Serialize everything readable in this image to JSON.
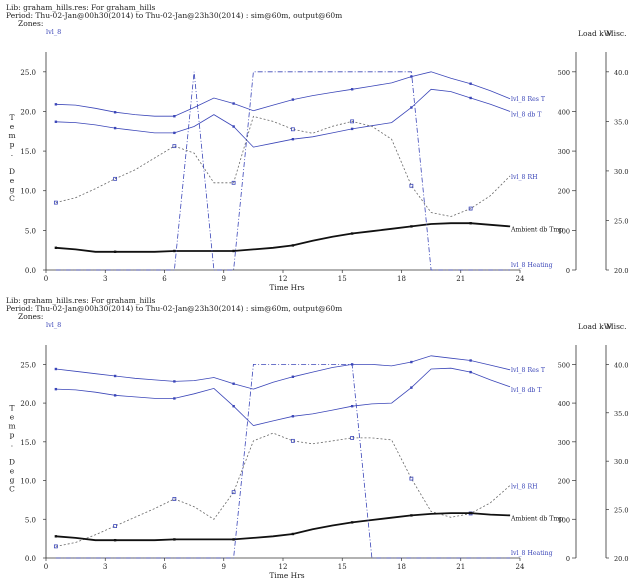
{
  "chart_data": [
    {
      "type": "line",
      "header": {
        "lib_line": "Lib: graham_hills.res: For graham_hills",
        "period_line": "Period: Thu-02-Jan@00h30(2014) to Thu-02-Jan@23h30(2014) : sim@60m, output@60m",
        "zones_label": "Zones:",
        "zone_name": "lvl_8"
      },
      "xlabel": "Time Hrs",
      "ylabel": "Temp. DegC",
      "right_axis_title": "Load kW",
      "right2_axis_title": "Misc.",
      "xlim": [
        0,
        24
      ],
      "xticks": [
        0,
        3,
        6,
        9,
        12,
        15,
        18,
        21,
        24
      ],
      "ylim": [
        0,
        27.5
      ],
      "yticks": [
        0.0,
        5.0,
        10.0,
        15.0,
        20.0,
        25.0
      ],
      "y2lim": [
        0,
        550
      ],
      "y2ticks": [
        0,
        100,
        200,
        300,
        400,
        500
      ],
      "y3lim": [
        20.0,
        42.0
      ],
      "y3ticks": [
        20.0,
        25.0,
        30.0,
        35.0,
        40.0
      ],
      "x": [
        0.5,
        1.5,
        2.5,
        3.5,
        4.5,
        5.5,
        6.5,
        7.5,
        8.5,
        9.5,
        10.5,
        11.5,
        12.5,
        13.5,
        14.5,
        15.5,
        16.5,
        17.5,
        18.5,
        19.5,
        20.5,
        21.5,
        22.5,
        23.5
      ],
      "series": [
        {
          "name": "lvl_8 Res T",
          "axis": "temp",
          "color": "#3b46b8",
          "values": [
            20.9,
            20.8,
            20.4,
            19.9,
            19.6,
            19.4,
            19.4,
            20.5,
            21.7,
            21.0,
            20.1,
            20.8,
            21.5,
            22.0,
            22.4,
            22.8,
            23.2,
            23.6,
            24.4,
            25.0,
            24.2,
            23.5,
            22.6,
            21.6
          ]
        },
        {
          "name": "lvl_8 db T",
          "axis": "temp",
          "color": "#3b46b8",
          "values": [
            18.7,
            18.6,
            18.3,
            17.9,
            17.6,
            17.3,
            17.3,
            18.1,
            19.6,
            18.1,
            15.5,
            16.0,
            16.5,
            16.8,
            17.3,
            17.8,
            18.2,
            18.6,
            20.5,
            22.8,
            22.5,
            21.7,
            20.9,
            20.0
          ]
        },
        {
          "name": "lvl_8 RH",
          "axis": "misc",
          "color": "#666666",
          "dashed": true,
          "markers": true,
          "values": [
            26.8,
            27.3,
            28.2,
            29.2,
            30.1,
            31.3,
            32.5,
            31.8,
            28.8,
            28.8,
            35.5,
            35.0,
            34.2,
            33.8,
            34.5,
            35.0,
            34.5,
            33.2,
            28.5,
            25.8,
            25.4,
            26.2,
            27.5,
            29.5
          ]
        },
        {
          "name": "Ambient db Tmp",
          "axis": "temp",
          "color": "#111111",
          "bold": true,
          "values": [
            2.8,
            2.6,
            2.3,
            2.3,
            2.3,
            2.3,
            2.4,
            2.4,
            2.4,
            2.4,
            2.6,
            2.8,
            3.1,
            3.7,
            4.2,
            4.6,
            4.9,
            5.2,
            5.5,
            5.8,
            5.9,
            5.9,
            5.7,
            5.5
          ]
        },
        {
          "name": "lvl_8 Heating",
          "axis": "load",
          "color": "#3b46b8",
          "dash_dot": true,
          "values": [
            0,
            0,
            0,
            0,
            0,
            0,
            0,
            500,
            0,
            0,
            500,
            500,
            500,
            500,
            500,
            500,
            500,
            500,
            500,
            0,
            0,
            0,
            0,
            0
          ]
        }
      ]
    },
    {
      "type": "line",
      "header": {
        "lib_line": "Lib: graham_hills.res: For graham_hills",
        "period_line": "Period: Thu-02-Jan@00h30(2014) to Thu-02-Jan@23h30(2014) : sim@60m, output@60m",
        "zones_label": "Zones:",
        "zone_name": "lvl_8"
      },
      "xlabel": "Time Hrs",
      "ylabel": "Temp. DegC",
      "right_axis_title": "Load kW",
      "right2_axis_title": "Misc.",
      "xlim": [
        0,
        24
      ],
      "xticks": [
        0,
        3,
        6,
        9,
        12,
        15,
        18,
        21,
        24
      ],
      "ylim": [
        0,
        27.5
      ],
      "yticks": [
        0.0,
        5.0,
        10.0,
        15.0,
        20.0,
        25.0
      ],
      "y2lim": [
        0,
        550
      ],
      "y2ticks": [
        0,
        100,
        200,
        300,
        400,
        500
      ],
      "y3lim": [
        20.0,
        42.0
      ],
      "y3ticks": [
        20.0,
        25.0,
        30.0,
        35.0,
        40.0
      ],
      "x": [
        0.5,
        1.5,
        2.5,
        3.5,
        4.5,
        5.5,
        6.5,
        7.5,
        8.5,
        9.5,
        10.5,
        11.5,
        12.5,
        13.5,
        14.5,
        15.5,
        16.5,
        17.5,
        18.5,
        19.5,
        20.5,
        21.5,
        22.5,
        23.5
      ],
      "series": [
        {
          "name": "lvl_8 Res T",
          "axis": "temp",
          "color": "#3b46b8",
          "values": [
            24.4,
            24.1,
            23.8,
            23.5,
            23.2,
            23.0,
            22.8,
            22.9,
            23.3,
            22.5,
            21.8,
            22.7,
            23.4,
            24.0,
            24.6,
            25.0,
            25.0,
            24.8,
            25.3,
            26.1,
            25.8,
            25.5,
            24.9,
            24.3
          ]
        },
        {
          "name": "lvl_8 db T",
          "axis": "temp",
          "color": "#3b46b8",
          "values": [
            21.8,
            21.7,
            21.4,
            21.0,
            20.8,
            20.6,
            20.6,
            21.2,
            21.9,
            19.6,
            17.1,
            17.7,
            18.3,
            18.6,
            19.1,
            19.6,
            19.9,
            20.0,
            22.0,
            24.4,
            24.5,
            24.0,
            23.0,
            22.1
          ]
        },
        {
          "name": "lvl_8 RH",
          "axis": "misc",
          "color": "#666666",
          "dashed": true,
          "markers": true,
          "values": [
            21.2,
            21.6,
            22.4,
            23.3,
            24.2,
            25.1,
            26.1,
            25.3,
            24.0,
            26.8,
            32.1,
            32.9,
            32.1,
            31.8,
            32.1,
            32.4,
            32.4,
            32.2,
            28.2,
            24.8,
            24.2,
            24.6,
            25.7,
            27.5
          ]
        },
        {
          "name": "Ambient db Tmp",
          "axis": "temp",
          "color": "#111111",
          "bold": true,
          "values": [
            2.8,
            2.6,
            2.3,
            2.3,
            2.3,
            2.3,
            2.4,
            2.4,
            2.4,
            2.4,
            2.6,
            2.8,
            3.1,
            3.7,
            4.2,
            4.6,
            4.9,
            5.2,
            5.5,
            5.7,
            5.8,
            5.8,
            5.6,
            5.5
          ]
        },
        {
          "name": "lvl_8 Heating",
          "axis": "load",
          "color": "#3b46b8",
          "dash_dot": true,
          "values": [
            0,
            0,
            0,
            0,
            0,
            0,
            0,
            0,
            0,
            0,
            500,
            500,
            500,
            500,
            500,
            500,
            0,
            0,
            0,
            0,
            0,
            0,
            0,
            0
          ]
        }
      ]
    }
  ]
}
